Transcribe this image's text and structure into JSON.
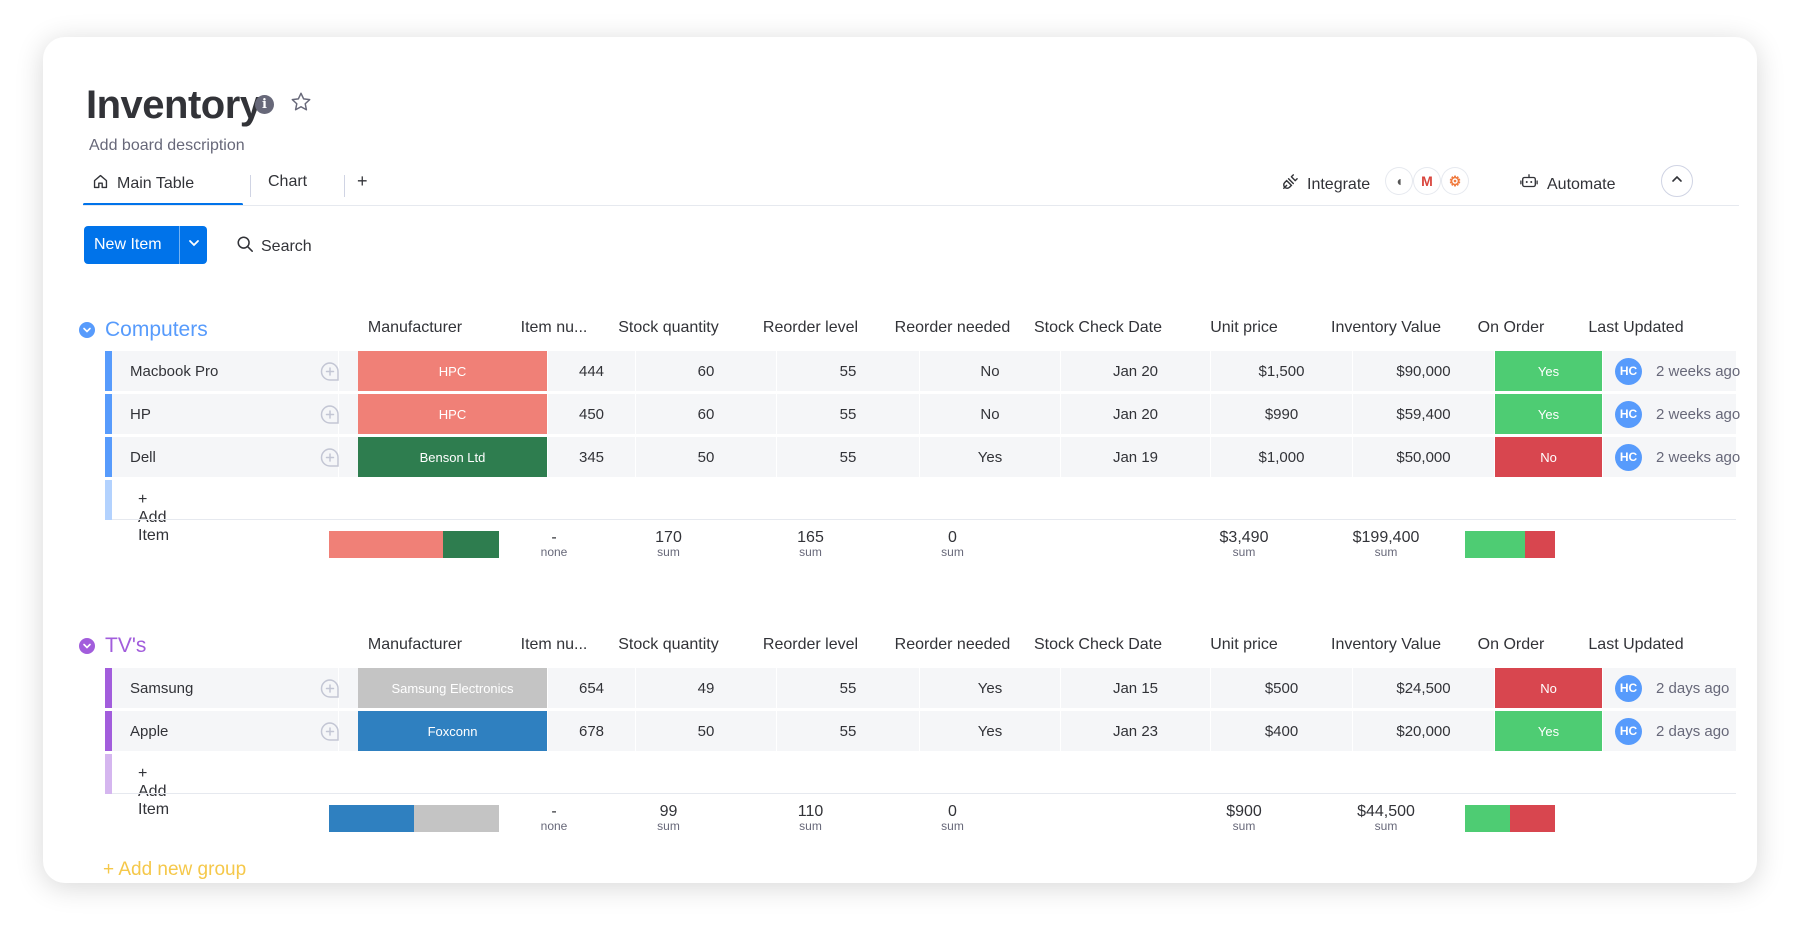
{
  "board": {
    "title": "Inventory",
    "description": "Add board description",
    "info_icon": "i"
  },
  "tabs": [
    {
      "label": "Main Table",
      "icon": "home-icon",
      "active": true
    },
    {
      "label": "Chart",
      "active": false
    }
  ],
  "add_tab_label": "+",
  "toolbar": {
    "integrate_label": "Integrate",
    "integration_logos": [
      "integration-logo",
      "gmail-logo",
      "hubspot-logo"
    ],
    "automate_label": "Automate",
    "new_item_label": "New Item",
    "search_label": "Search"
  },
  "columns": [
    "Manufacturer",
    "Item nu...",
    "Stock quantity",
    "Reorder level",
    "Reorder needed",
    "Stock Check Date",
    "Unit price",
    "Inventory Value",
    "On Order",
    "Last Updated"
  ],
  "colors": {
    "accent": "#0073ea",
    "hpc": "#f08077",
    "benson": "#2e7d4f",
    "samsung": "#c4c4c4",
    "foxconn": "#2f80c0",
    "yes": "#4ecc73",
    "no": "#d8464f",
    "computers_group": "#579bfc",
    "tvs_group": "#a25ddc"
  },
  "groups": [
    {
      "name": "Computers",
      "color": "#579bfc",
      "add_item_label": "+ Add Item",
      "rows": [
        {
          "name": "Macbook Pro",
          "manufacturer": "HPC",
          "item_number": "444",
          "stock_quantity": "60",
          "reorder_level": "55",
          "reorder_needed": "No",
          "stock_check_date": "Jan 20",
          "unit_price": "$1,500",
          "inventory_value": "$90,000",
          "on_order": "Yes",
          "avatar": "HC",
          "last_updated": "2 weeks ago"
        },
        {
          "name": "HP",
          "manufacturer": "HPC",
          "item_number": "450",
          "stock_quantity": "60",
          "reorder_level": "55",
          "reorder_needed": "No",
          "stock_check_date": "Jan 20",
          "unit_price": "$990",
          "inventory_value": "$59,400",
          "on_order": "Yes",
          "avatar": "HC",
          "last_updated": "2 weeks ago"
        },
        {
          "name": "Dell",
          "manufacturer": "Benson Ltd",
          "item_number": "345",
          "stock_quantity": "50",
          "reorder_level": "55",
          "reorder_needed": "Yes",
          "stock_check_date": "Jan 19",
          "unit_price": "$1,000",
          "inventory_value": "$50,000",
          "on_order": "No",
          "avatar": "HC",
          "last_updated": "2 weeks ago"
        }
      ],
      "summary": {
        "manufacturer_split": [
          0.67,
          0.33
        ],
        "item_number": {
          "value": "-",
          "label": "none"
        },
        "stock_quantity": {
          "value": "170",
          "label": "sum"
        },
        "reorder_level": {
          "value": "165",
          "label": "sum"
        },
        "reorder_needed": {
          "value": "0",
          "label": "sum"
        },
        "unit_price": {
          "value": "$3,490",
          "label": "sum"
        },
        "inventory_value": {
          "value": "$199,400",
          "label": "sum"
        },
        "on_order_split": [
          0.67,
          0.33
        ]
      }
    },
    {
      "name": "TV's",
      "color": "#a25ddc",
      "add_item_label": "+ Add Item",
      "rows": [
        {
          "name": "Samsung",
          "manufacturer": "Samsung Electronics",
          "item_number": "654",
          "stock_quantity": "49",
          "reorder_level": "55",
          "reorder_needed": "Yes",
          "stock_check_date": "Jan 15",
          "unit_price": "$500",
          "inventory_value": "$24,500",
          "on_order": "No",
          "avatar": "HC",
          "last_updated": "2 days ago"
        },
        {
          "name": "Apple",
          "manufacturer": "Foxconn",
          "item_number": "678",
          "stock_quantity": "50",
          "reorder_level": "55",
          "reorder_needed": "Yes",
          "stock_check_date": "Jan 23",
          "unit_price": "$400",
          "inventory_value": "$20,000",
          "on_order": "Yes",
          "avatar": "HC",
          "last_updated": "2 days ago"
        }
      ],
      "summary": {
        "manufacturer_split": [
          0.5,
          0.5
        ],
        "item_number": {
          "value": "-",
          "label": "none"
        },
        "stock_quantity": {
          "value": "99",
          "label": "sum"
        },
        "reorder_level": {
          "value": "110",
          "label": "sum"
        },
        "reorder_needed": {
          "value": "0",
          "label": "sum"
        },
        "unit_price": {
          "value": "$900",
          "label": "sum"
        },
        "inventory_value": {
          "value": "$44,500",
          "label": "sum"
        },
        "on_order_split": [
          0.5,
          0.5
        ]
      }
    }
  ],
  "add_group_label": "+ Add new group"
}
